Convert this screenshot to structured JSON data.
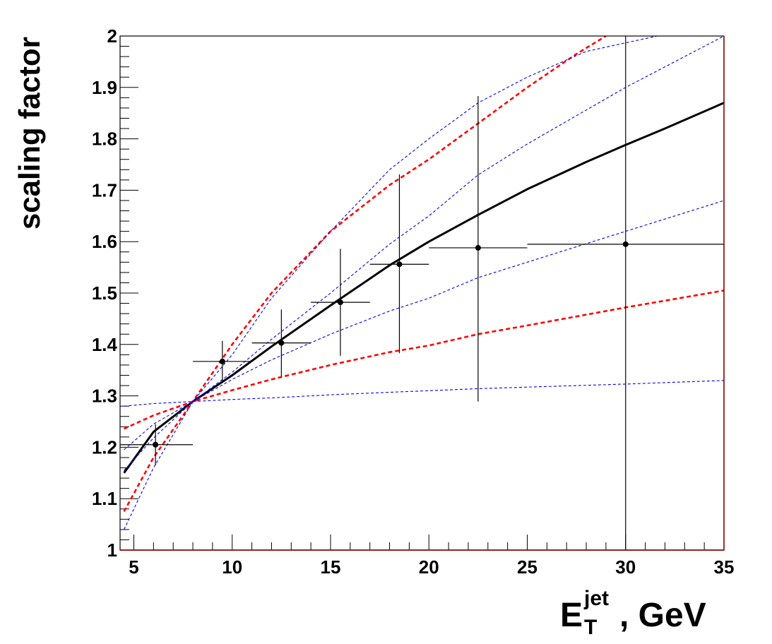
{
  "chart_data": {
    "type": "scatter",
    "title": "",
    "ylabel": "scaling factor",
    "xlabel": {
      "main": "E",
      "sup": "jet",
      "sub": "T",
      "suffix": ", GeV"
    },
    "xlim": [
      4.3,
      35
    ],
    "ylim": [
      1,
      2
    ],
    "x_ticks": [
      5,
      10,
      15,
      20,
      25,
      30,
      35
    ],
    "y_ticks": [
      1,
      1.1,
      1.2,
      1.3,
      1.4,
      1.5,
      1.6,
      1.7,
      1.8,
      1.9,
      2
    ],
    "y_tick_labels": [
      "1",
      "1.1",
      "1.2",
      "1.3",
      "1.4",
      "1.5",
      "1.6",
      "1.7",
      "1.8",
      "1.9",
      "2"
    ],
    "grid": false,
    "data_points": {
      "color": "#000000",
      "x": [
        6.1,
        9.5,
        12.5,
        15.5,
        18.5,
        22.5,
        30
      ],
      "y": [
        1.205,
        1.367,
        1.403,
        1.482,
        1.556,
        1.588,
        1.595
      ],
      "x_err": [
        [
          4.3,
          8
        ],
        [
          8,
          11
        ],
        [
          11,
          14
        ],
        [
          14,
          17
        ],
        [
          17,
          20
        ],
        [
          20,
          25
        ],
        [
          25,
          35
        ]
      ],
      "y_err": [
        [
          1.165,
          1.245
        ],
        [
          1.327,
          1.407
        ],
        [
          1.338,
          1.468
        ],
        [
          1.378,
          1.586
        ],
        [
          1.383,
          1.731
        ],
        [
          1.289,
          1.883
        ],
        [
          1.0,
          2.0
        ]
      ]
    },
    "series": [
      {
        "style": "solid",
        "color": "#000000",
        "x": [
          4.5,
          6,
          8,
          10,
          12,
          15,
          18,
          20,
          22.5,
          25,
          28,
          30,
          32,
          35
        ],
        "y": [
          1.15,
          1.23,
          1.289,
          1.34,
          1.396,
          1.476,
          1.554,
          1.6,
          1.652,
          1.702,
          1.755,
          1.788,
          1.82,
          1.87
        ]
      },
      {
        "style": "dashed",
        "color": "#ff0000",
        "x": [
          4.5,
          6,
          8,
          10,
          12,
          15,
          18,
          20,
          22.5,
          25,
          27.5,
          29
        ],
        "y": [
          1.075,
          1.18,
          1.289,
          1.4,
          1.5,
          1.62,
          1.71,
          1.76,
          1.83,
          1.9,
          1.965,
          2.0
        ]
      },
      {
        "style": "dashed",
        "color": "#ff0000",
        "x": [
          4.5,
          6,
          8,
          10,
          12,
          15,
          18,
          20,
          22.5,
          25,
          30,
          35
        ],
        "y": [
          1.236,
          1.262,
          1.289,
          1.311,
          1.332,
          1.36,
          1.385,
          1.398,
          1.42,
          1.437,
          1.472,
          1.505
        ]
      },
      {
        "style": "dotted",
        "color": "#0000ff",
        "x": [
          4.5,
          6,
          8,
          10,
          12,
          15,
          18,
          20,
          22.5,
          25,
          28,
          31.6
        ],
        "y": [
          1.04,
          1.16,
          1.289,
          1.38,
          1.49,
          1.62,
          1.74,
          1.8,
          1.87,
          1.92,
          1.97,
          2.0
        ]
      },
      {
        "style": "dotted",
        "color": "#0000ff",
        "x": [
          4.5,
          6,
          8,
          10,
          12,
          15,
          18,
          20,
          22.5,
          25,
          30,
          35
        ],
        "y": [
          1.195,
          1.245,
          1.289,
          1.346,
          1.41,
          1.5,
          1.595,
          1.65,
          1.73,
          1.79,
          1.9,
          2.0
        ]
      },
      {
        "style": "dotted",
        "color": "#0000ff",
        "x": [
          4.5,
          6,
          8,
          10,
          12,
          15,
          18,
          20,
          22.5,
          25,
          30,
          35
        ],
        "y": [
          1.155,
          1.218,
          1.289,
          1.332,
          1.37,
          1.42,
          1.465,
          1.49,
          1.53,
          1.56,
          1.62,
          1.68
        ]
      },
      {
        "style": "dotted",
        "color": "#0000ff",
        "x": [
          4.5,
          6,
          8,
          10,
          12,
          15,
          18,
          20,
          22.5,
          25,
          30,
          35
        ],
        "y": [
          1.28,
          1.285,
          1.289,
          1.293,
          1.296,
          1.302,
          1.307,
          1.31,
          1.314,
          1.317,
          1.323,
          1.33
        ]
      }
    ]
  }
}
